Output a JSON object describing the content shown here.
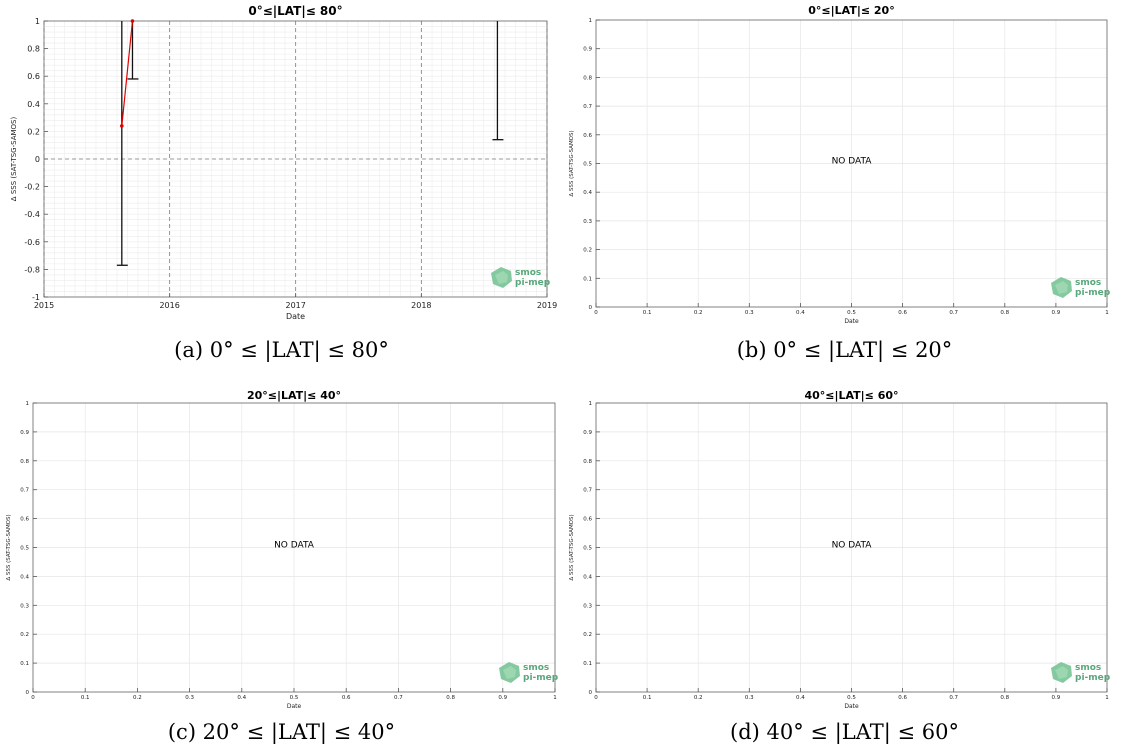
{
  "chart_data": [
    {
      "type": "line",
      "title": "0°≤|LAT|≤ 80°",
      "xlabel": "Date",
      "ylabel": "Δ SSS (SAT-TSG-SAMOS)",
      "xticks": [
        "2015",
        "2016",
        "2017",
        "2018",
        "2019"
      ],
      "xlim": [
        "2015-01-01",
        "2019-01-01"
      ],
      "ylim": [
        -1,
        1
      ],
      "yticks": [
        "-1",
        "-0.8",
        "-0.6",
        "-0.4",
        "-0.2",
        "0",
        "0.2",
        "0.4",
        "0.6",
        "0.8",
        "1"
      ],
      "grid": true,
      "reference_line": 0,
      "series": [
        {
          "color": "#e00000",
          "points": [
            {
              "x": "2015-08-15",
              "y": 0.24
            },
            {
              "x": "2015-09-15",
              "y": 1.0
            }
          ]
        }
      ],
      "error_bars": [
        {
          "x": "2015-08-15",
          "low": -0.77,
          "high": 1.0
        },
        {
          "x": "2015-09-15",
          "low": 0.58,
          "high": 1.0
        },
        {
          "x": "2018-08-10",
          "low": 0.14,
          "high": 1.0
        }
      ],
      "logo": "smos pi-mep",
      "caption": "(a) 0° ≤ |LAT| ≤ 80°"
    },
    {
      "type": "line",
      "title": "0°≤|LAT|≤ 20°",
      "xlabel": "Date",
      "ylabel": "Δ SSS (SAT-TSG-SAMOS)",
      "xticks": [
        "0",
        "0.1",
        "0.2",
        "0.3",
        "0.4",
        "0.5",
        "0.6",
        "0.7",
        "0.8",
        "0.9",
        "1"
      ],
      "yticks": [
        "0",
        "0.1",
        "0.2",
        "0.3",
        "0.4",
        "0.5",
        "0.6",
        "0.7",
        "0.8",
        "0.9",
        "1"
      ],
      "xlim": [
        0,
        1
      ],
      "ylim": [
        0,
        1
      ],
      "grid": true,
      "message": "NO DATA",
      "series": [],
      "logo": "smos pi-mep",
      "caption": "(b) 0° ≤ |LAT| ≤ 20°"
    },
    {
      "type": "line",
      "title": "20°≤|LAT|≤ 40°",
      "xlabel": "Date",
      "ylabel": "Δ SSS (SAT-TSG-SAMOS)",
      "xticks": [
        "0",
        "0.1",
        "0.2",
        "0.3",
        "0.4",
        "0.5",
        "0.6",
        "0.7",
        "0.8",
        "0.9",
        "1"
      ],
      "yticks": [
        "0",
        "0.1",
        "0.2",
        "0.3",
        "0.4",
        "0.5",
        "0.6",
        "0.7",
        "0.8",
        "0.9",
        "1"
      ],
      "xlim": [
        0,
        1
      ],
      "ylim": [
        0,
        1
      ],
      "grid": true,
      "message": "NO DATA",
      "series": [],
      "logo": "smos pi-mep",
      "caption": "(c) 20° ≤ |LAT| ≤ 40°"
    },
    {
      "type": "line",
      "title": "40°≤|LAT|≤ 60°",
      "xlabel": "Date",
      "ylabel": "Δ SSS (SAT-TSG-SAMOS)",
      "xticks": [
        "0",
        "0.1",
        "0.2",
        "0.3",
        "0.4",
        "0.5",
        "0.6",
        "0.7",
        "0.8",
        "0.9",
        "1"
      ],
      "yticks": [
        "0",
        "0.1",
        "0.2",
        "0.3",
        "0.4",
        "0.5",
        "0.6",
        "0.7",
        "0.8",
        "0.9",
        "1"
      ],
      "xlim": [
        0,
        1
      ],
      "ylim": [
        0,
        1
      ],
      "grid": true,
      "message": "NO DATA",
      "series": [],
      "logo": "smos pi-mep",
      "caption": "(d) 40° ≤ |LAT| ≤ 60°"
    }
  ]
}
